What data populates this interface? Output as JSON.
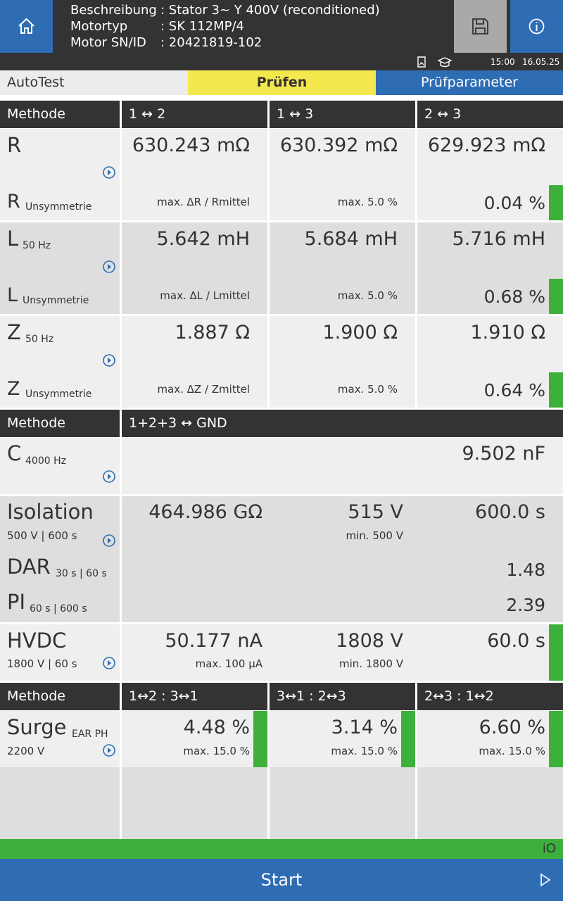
{
  "header": {
    "lines": [
      {
        "label": "Beschreibung",
        "value": ": Stator 3~ Y 400V (reconditioned)"
      },
      {
        "label": "Motortyp",
        "value": ": SK 112MP/4"
      },
      {
        "label": "Motor SN/ID",
        "value": ": 20421819-102"
      }
    ],
    "time": "15:00",
    "date": "16.05.25"
  },
  "tabs": [
    "AutoTest",
    "Prüfen",
    "Prüfparameter"
  ],
  "table": {
    "phase_method": {
      "label": "Methode",
      "columns": [
        "1 ↔ 2",
        "1 ↔ 3",
        "2 ↔ 3"
      ]
    },
    "R": {
      "symbol": "R",
      "values": [
        "630.243 mΩ",
        "630.392 mΩ",
        "629.923 mΩ"
      ],
      "unsymmetry": {
        "symbol": "R",
        "sub": "Unsymmetrie",
        "formula": "max. ΔR / Rmittel",
        "limit": "max. 5.0 %",
        "result": "0.04 %"
      }
    },
    "L": {
      "symbol": "L",
      "sub": "50 Hz",
      "values": [
        "5.642 mH",
        "5.684 mH",
        "5.716 mH"
      ],
      "unsymmetry": {
        "symbol": "L",
        "sub": "Unsymmetrie",
        "formula": "max. ΔL / Lmittel",
        "limit": "max. 5.0 %",
        "result": "0.68 %"
      }
    },
    "Z": {
      "symbol": "Z",
      "sub": "50 Hz",
      "values": [
        "1.887 Ω",
        "1.900 Ω",
        "1.910 Ω"
      ],
      "unsymmetry": {
        "symbol": "Z",
        "sub": "Unsymmetrie",
        "formula": "max. ΔZ / Zmittel",
        "limit": "max. 5.0 %",
        "result": "0.64 %"
      }
    },
    "ground_method": {
      "label": "Methode",
      "column": "1+2+3 ↔ GND"
    },
    "C": {
      "symbol": "C",
      "sub": "4000 Hz",
      "value": "9.502 nF"
    },
    "isolation": {
      "name": "Isolation",
      "params": "500 V | 600 s",
      "values": [
        "464.986 GΩ",
        "515 V",
        "600.0 s"
      ],
      "limit": "min. 500 V",
      "DAR": {
        "symbol": "DAR",
        "sub": "30 s | 60 s",
        "value": "1.48"
      },
      "PI": {
        "symbol": "PI",
        "sub": "60 s | 600 s",
        "value": "2.39"
      }
    },
    "HVDC": {
      "name": "HVDC",
      "params": "1800 V | 60 s",
      "values": [
        "50.177 nA",
        "1808 V",
        "60.0 s"
      ],
      "limits": [
        "max. 100 µA",
        "min. 1800 V"
      ]
    },
    "surge_method": {
      "label": "Methode",
      "columns": [
        "1↔2 : 3↔1",
        "3↔1 : 2↔3",
        "2↔3 : 1↔2"
      ]
    },
    "surge": {
      "name": "Surge",
      "sub": "EAR PH",
      "params": "2200 V",
      "values": [
        "4.48 %",
        "3.14 %",
        "6.60 %"
      ],
      "limits": [
        "max. 15.0 %",
        "max. 15.0 %",
        "max. 15.0 %"
      ]
    }
  },
  "result": "iO",
  "start": "Start"
}
